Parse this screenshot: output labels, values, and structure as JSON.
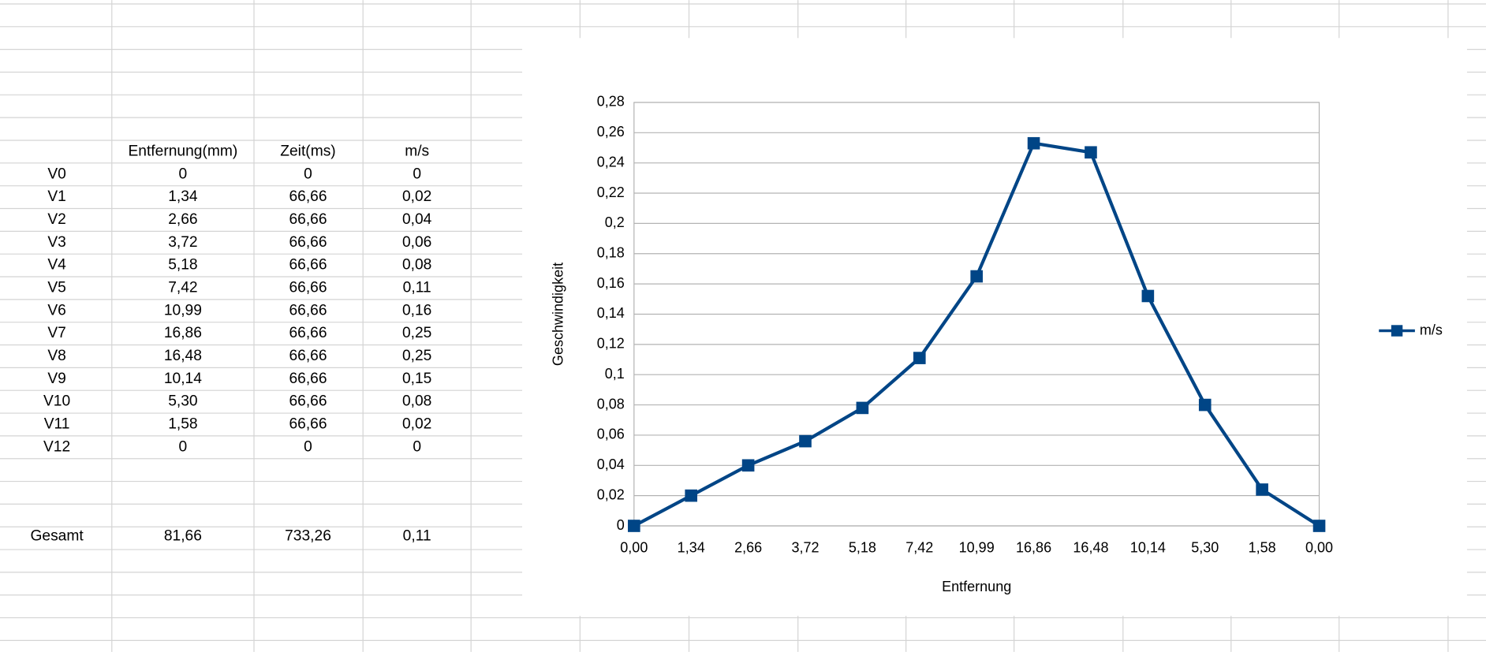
{
  "table": {
    "header": [
      "Entfernung(mm)",
      "Zeit(ms)",
      "m/s"
    ],
    "rows": [
      [
        "V0",
        "0",
        "0",
        "0"
      ],
      [
        "V1",
        "1,34",
        "66,66",
        "0,02"
      ],
      [
        "V2",
        "2,66",
        "66,66",
        "0,04"
      ],
      [
        "V3",
        "3,72",
        "66,66",
        "0,06"
      ],
      [
        "V4",
        "5,18",
        "66,66",
        "0,08"
      ],
      [
        "V5",
        "7,42",
        "66,66",
        "0,11"
      ],
      [
        "V6",
        "10,99",
        "66,66",
        "0,16"
      ],
      [
        "V7",
        "16,86",
        "66,66",
        "0,25"
      ],
      [
        "V8",
        "16,48",
        "66,66",
        "0,25"
      ],
      [
        "V9",
        "10,14",
        "66,66",
        "0,15"
      ],
      [
        "V10",
        "5,30",
        "66,66",
        "0,08"
      ],
      [
        "V11",
        "1,58",
        "66,66",
        "0,02"
      ],
      [
        "V12",
        "0",
        "0",
        "0"
      ]
    ],
    "total": [
      "Gesamt",
      "81,66",
      "733,26",
      "0,11"
    ]
  },
  "chart_data": {
    "type": "line",
    "x_label": "Entfernung",
    "y_label": "Geschwindigkeit",
    "categories": [
      "0,00",
      "1,34",
      "2,66",
      "3,72",
      "5,18",
      "7,42",
      "10,99",
      "16,86",
      "16,48",
      "10,14",
      "5,30",
      "1,58",
      "0,00"
    ],
    "series": [
      {
        "name": "m/s",
        "color": "#004586",
        "values": [
          0,
          0.02,
          0.04,
          0.056,
          0.078,
          0.111,
          0.165,
          0.253,
          0.247,
          0.152,
          0.08,
          0.024,
          0
        ]
      }
    ],
    "ylim": [
      0,
      0.28
    ],
    "yticks": [
      0,
      {
        "value": 0.02,
        "label": "0,02"
      },
      {
        "value": 0.04,
        "label": "0,04"
      },
      {
        "value": 0.06,
        "label": "0,06"
      },
      {
        "value": 0.08,
        "label": "0,08"
      },
      {
        "value": 0.1,
        "label": "0,1"
      },
      {
        "value": 0.12,
        "label": "0,12"
      },
      {
        "value": 0.14,
        "label": "0,14"
      },
      {
        "value": 0.16,
        "label": "0,16"
      },
      {
        "value": 0.18,
        "label": "0,18"
      },
      {
        "value": 0.2,
        "label": "0,2"
      },
      {
        "value": 0.22,
        "label": "0,22"
      },
      {
        "value": 0.24,
        "label": "0,24"
      },
      {
        "value": 0.26,
        "label": "0,26"
      },
      {
        "value": 0.28,
        "label": "0,28"
      }
    ],
    "grid": true,
    "legend": "right"
  }
}
